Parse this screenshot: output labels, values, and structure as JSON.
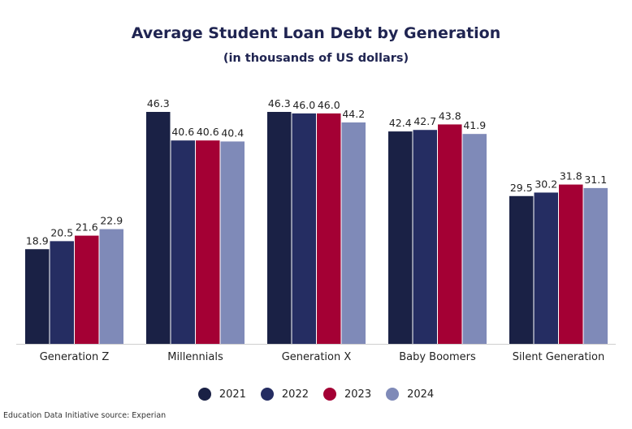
{
  "chart_data": {
    "type": "bar",
    "title": "Average Student Loan Debt by Generation",
    "subtitle": "(in thousands of US dollars)",
    "categories": [
      "Generation Z",
      "Millennials",
      "Generation X",
      "Baby Boomers",
      "Silent Generation"
    ],
    "series": [
      {
        "name": "2021",
        "color": "#1a2145",
        "values": [
          18.9,
          46.3,
          46.3,
          42.4,
          29.5
        ]
      },
      {
        "name": "2022",
        "color": "#252d62",
        "values": [
          20.5,
          40.6,
          46.0,
          42.7,
          30.2
        ]
      },
      {
        "name": "2023",
        "color": "#a40034",
        "values": [
          21.6,
          40.6,
          46.0,
          43.8,
          31.8
        ]
      },
      {
        "name": "2024",
        "color": "#7f8ab8",
        "values": [
          22.9,
          40.4,
          44.2,
          41.9,
          31.1
        ]
      }
    ],
    "ylim": [
      0,
      46.3
    ],
    "legend_position": "bottom",
    "grid": false
  },
  "source": "Education Data Initiative source: Experian"
}
